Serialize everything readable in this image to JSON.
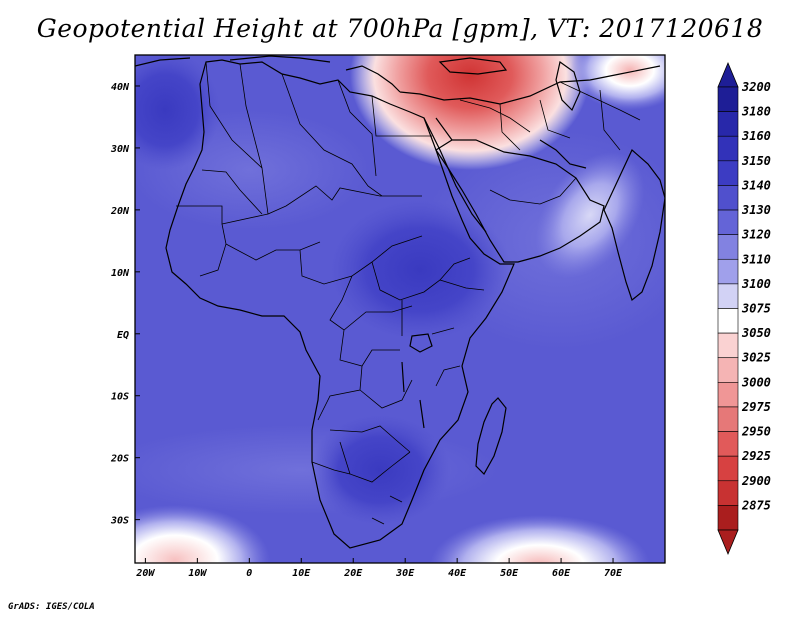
{
  "title": "Geopotential Height at 700hPa [gpm], VT: 2017120618",
  "footer": "GrADS: IGES/COLA",
  "map": {
    "lon_range": [
      -22,
      80
    ],
    "lat_range": [
      -37,
      45
    ],
    "lon_ticks": [
      {
        "value": -20,
        "label": "20W"
      },
      {
        "value": -10,
        "label": "10W"
      },
      {
        "value": 0,
        "label": "0"
      },
      {
        "value": 10,
        "label": "10E"
      },
      {
        "value": 20,
        "label": "20E"
      },
      {
        "value": 30,
        "label": "30E"
      },
      {
        "value": 40,
        "label": "40E"
      },
      {
        "value": 50,
        "label": "50E"
      },
      {
        "value": 60,
        "label": "60E"
      },
      {
        "value": 70,
        "label": "70E"
      }
    ],
    "lat_ticks": [
      {
        "value": 40,
        "label": "40N"
      },
      {
        "value": 30,
        "label": "30N"
      },
      {
        "value": 20,
        "label": "20N"
      },
      {
        "value": 10,
        "label": "10N"
      },
      {
        "value": 0,
        "label": "EQ"
      },
      {
        "value": -10,
        "label": "10S"
      },
      {
        "value": -20,
        "label": "20S"
      },
      {
        "value": -30,
        "label": "30S"
      }
    ]
  },
  "colorbar": {
    "levels": [
      {
        "label": "3200",
        "color": "#1e1e96"
      },
      {
        "label": "3180",
        "color": "#2828aa"
      },
      {
        "label": "3160",
        "color": "#3232b9"
      },
      {
        "label": "3150",
        "color": "#3c3cc3"
      },
      {
        "label": "3140",
        "color": "#5050cd"
      },
      {
        "label": "3130",
        "color": "#6464d7"
      },
      {
        "label": "3120",
        "color": "#8282e1"
      },
      {
        "label": "3110",
        "color": "#a0a0eb"
      },
      {
        "label": "3100",
        "color": "#d2d2f5"
      },
      {
        "label": "3075",
        "color": "#ffffff"
      },
      {
        "label": "3050",
        "color": "#fad2d2"
      },
      {
        "label": "3025",
        "color": "#f5b4b4"
      },
      {
        "label": "3000",
        "color": "#f09696"
      },
      {
        "label": "2975",
        "color": "#e67878"
      },
      {
        "label": "2950",
        "color": "#e15a5a"
      },
      {
        "label": "2925",
        "color": "#d74141"
      },
      {
        "label": "2900",
        "color": "#c83232"
      },
      {
        "label": "2875",
        "color": "#aa1e1e"
      }
    ],
    "top_arrow_color": "#1e1e96",
    "bottom_arrow_color": "#aa1e1e"
  }
}
